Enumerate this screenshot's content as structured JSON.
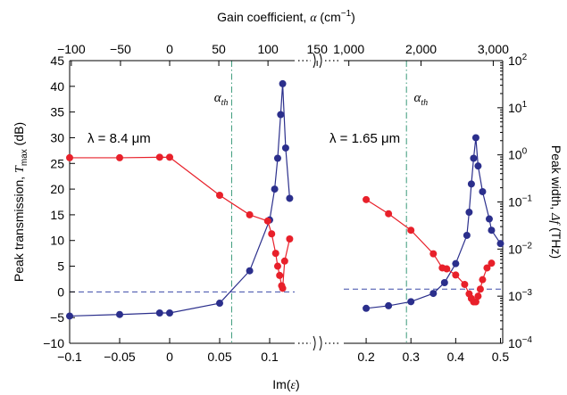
{
  "chart_data": {
    "type": "line",
    "colors": {
      "blue_series": "#2b2f8c",
      "red_series": "#e8202a",
      "threshold": "#3a9a7a",
      "reference": "#3b4aa8"
    },
    "axes": {
      "x_bottom": {
        "label_main": "Im(",
        "label_symbol": "ε",
        "label_end": ")",
        "left_ticks": [
          "−0.1",
          "−0.05",
          "0",
          "0.05",
          "0.1"
        ],
        "right_ticks": [
          "0.2",
          "0.3",
          "0.4",
          "0.5"
        ]
      },
      "x_top": {
        "label_main": "Gain coefficient, ",
        "label_symbol": "α",
        "label_end": " (cm",
        "label_exp": "−1",
        "label_close": ")",
        "left_ticks": [
          "−100",
          "−50",
          "0",
          "50",
          "100",
          "150"
        ],
        "right_ticks": [
          "1,000",
          "2,000",
          "3,000"
        ]
      },
      "y_left": {
        "label_main": "Peak transmission, ",
        "label_symbol": "T",
        "label_sub": "max",
        "label_end": " (dB)",
        "ticks": [
          "−10",
          "−5",
          "0",
          "5",
          "10",
          "15",
          "20",
          "25",
          "30",
          "35",
          "40",
          "45"
        ],
        "range": [
          -10,
          45
        ]
      },
      "y_right": {
        "label_main": "Peak width, ",
        "label_symbol": "Δf",
        "label_end": " (THz)",
        "tick_base": "10",
        "tick_exps": [
          "−4",
          "−3",
          "−2",
          "−1",
          "0",
          "1",
          "2"
        ],
        "range_log10": [
          -4,
          2
        ]
      }
    },
    "annotations": {
      "left_lambda": "λ = 8.4 μm",
      "right_lambda": "λ = 1.65 μm",
      "threshold_symbol": "α",
      "threshold_sub": "th"
    },
    "threshold_lines": {
      "left_x": 0.062,
      "right_x": 0.29
    },
    "reference_lines": {
      "left_y_db": 0,
      "right_y_log": -2.85
    },
    "left_panel": {
      "x_range": [
        -0.1,
        0.125
      ],
      "series": [
        {
          "key": "transmission",
          "color_key": "blue_series",
          "points": [
            [
              -0.1,
              -4.7
            ],
            [
              -0.05,
              -4.4
            ],
            [
              -0.01,
              -4.1
            ],
            [
              0.0,
              -4.1
            ],
            [
              0.05,
              -2.2
            ],
            [
              0.08,
              4.1
            ],
            [
              0.1,
              14
            ],
            [
              0.105,
              20
            ],
            [
              0.108,
              26
            ],
            [
              0.111,
              34.5
            ],
            [
              0.113,
              40.5
            ],
            [
              0.116,
              28
            ],
            [
              0.12,
              18.2
            ]
          ]
        },
        {
          "key": "width",
          "color_key": "red_series",
          "points": [
            [
              -0.1,
              26.1
            ],
            [
              -0.05,
              26.1
            ],
            [
              -0.01,
              26.2
            ],
            [
              0.0,
              26.2
            ],
            [
              0.05,
              18.8
            ],
            [
              0.08,
              15
            ],
            [
              0.098,
              13.8
            ],
            [
              0.102,
              11.3
            ],
            [
              0.106,
              7.5
            ],
            [
              0.108,
              5
            ],
            [
              0.11,
              3.2
            ],
            [
              0.112,
              1.2
            ],
            [
              0.113,
              0.7
            ],
            [
              0.115,
              6
            ],
            [
              0.12,
              10.3
            ]
          ]
        }
      ]
    },
    "right_panel": {
      "x_range": [
        0.15,
        0.505
      ],
      "series": [
        {
          "key": "transmission",
          "color_key": "blue_series",
          "points": [
            [
              0.2,
              -3.2
            ],
            [
              0.25,
              -2.7
            ],
            [
              0.3,
              -1.9
            ],
            [
              0.35,
              -0.3
            ],
            [
              0.375,
              1.8
            ],
            [
              0.4,
              5.5
            ],
            [
              0.425,
              11
            ],
            [
              0.43,
              15.5
            ],
            [
              0.435,
              21
            ],
            [
              0.44,
              26
            ],
            [
              0.445,
              30
            ],
            [
              0.45,
              24.5
            ],
            [
              0.46,
              19.5
            ],
            [
              0.475,
              14.2
            ],
            [
              0.48,
              12
            ],
            [
              0.5,
              9.4
            ]
          ]
        },
        {
          "key": "width",
          "color_key": "red_series",
          "points": [
            [
              0.2,
              -0.95
            ],
            [
              0.25,
              -1.25
            ],
            [
              0.3,
              -1.6
            ],
            [
              0.35,
              -2.1
            ],
            [
              0.37,
              -2.4
            ],
            [
              0.38,
              -2.42
            ],
            [
              0.4,
              -2.55
            ],
            [
              0.42,
              -2.75
            ],
            [
              0.43,
              -2.95
            ],
            [
              0.435,
              -3.05
            ],
            [
              0.44,
              -3.12
            ],
            [
              0.445,
              -3.12
            ],
            [
              0.45,
              -3.0
            ],
            [
              0.455,
              -2.85
            ],
            [
              0.46,
              -2.65
            ],
            [
              0.47,
              -2.4
            ],
            [
              0.48,
              -2.3
            ]
          ]
        }
      ]
    }
  }
}
